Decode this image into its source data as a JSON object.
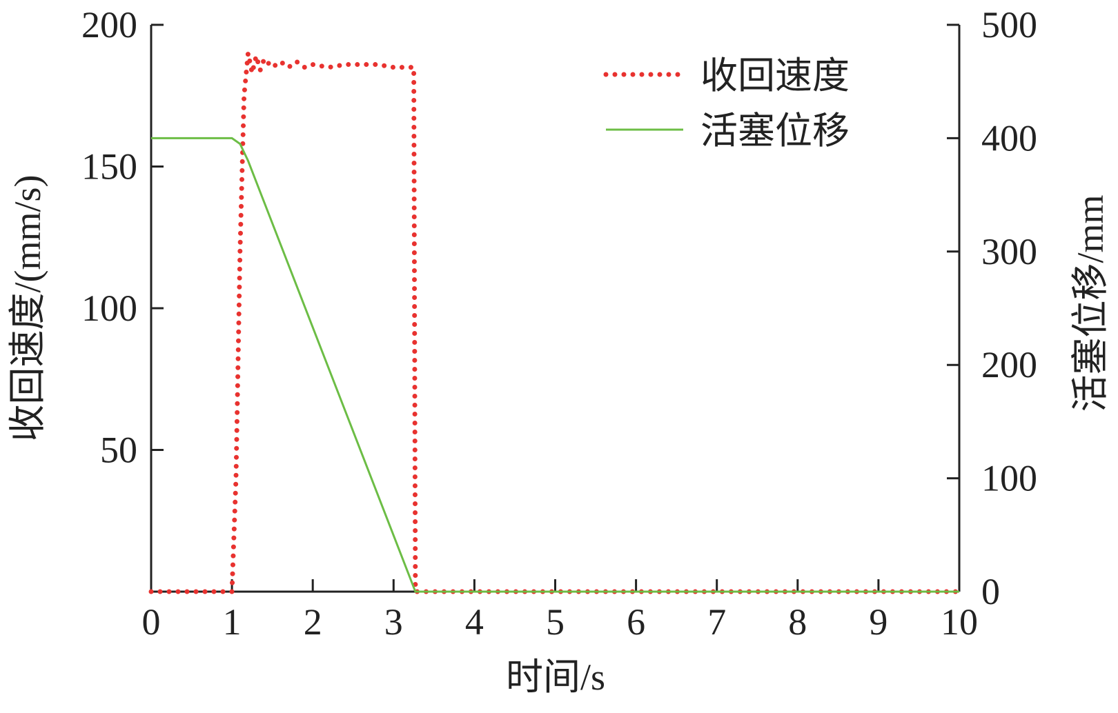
{
  "chart_data": {
    "type": "line",
    "x_label": "时间/s",
    "y_label": "收回速度/(mm/s)",
    "y2_label": "活塞位移/mm",
    "xlim": [
      0,
      10
    ],
    "xticks": [
      0,
      1,
      2,
      3,
      4,
      5,
      6,
      7,
      8,
      9,
      10
    ],
    "ylim": [
      0,
      200
    ],
    "yticks": [
      50,
      100,
      150,
      200
    ],
    "y2lim": [
      0,
      500
    ],
    "y2ticks": [
      0,
      100,
      200,
      300,
      400,
      500
    ],
    "legend": "upper right",
    "series": [
      {
        "name": "收回速度",
        "color": "#e8322f",
        "style": "dotted",
        "x": [
          0,
          1.0,
          1.05,
          1.1,
          1.15,
          1.2,
          1.25,
          1.3,
          1.35,
          1.4,
          1.5,
          1.6,
          1.7,
          1.8,
          1.9,
          2.0,
          2.2,
          2.4,
          2.6,
          2.8,
          3.0,
          3.2,
          3.25,
          3.27,
          10
        ],
        "values": [
          0,
          0,
          40,
          120,
          175,
          190,
          183,
          189,
          184,
          188,
          185,
          187,
          185,
          187,
          185,
          186,
          185,
          186,
          186,
          186,
          185,
          185,
          185,
          0,
          0
        ]
      },
      {
        "name": "活塞位移",
        "color": "#6cbd45",
        "style": "solid",
        "axis": "y2",
        "x": [
          0,
          1.0,
          1.1,
          1.2,
          3.27,
          10
        ],
        "values": [
          400,
          400,
          395,
          380,
          0,
          0
        ]
      }
    ]
  }
}
